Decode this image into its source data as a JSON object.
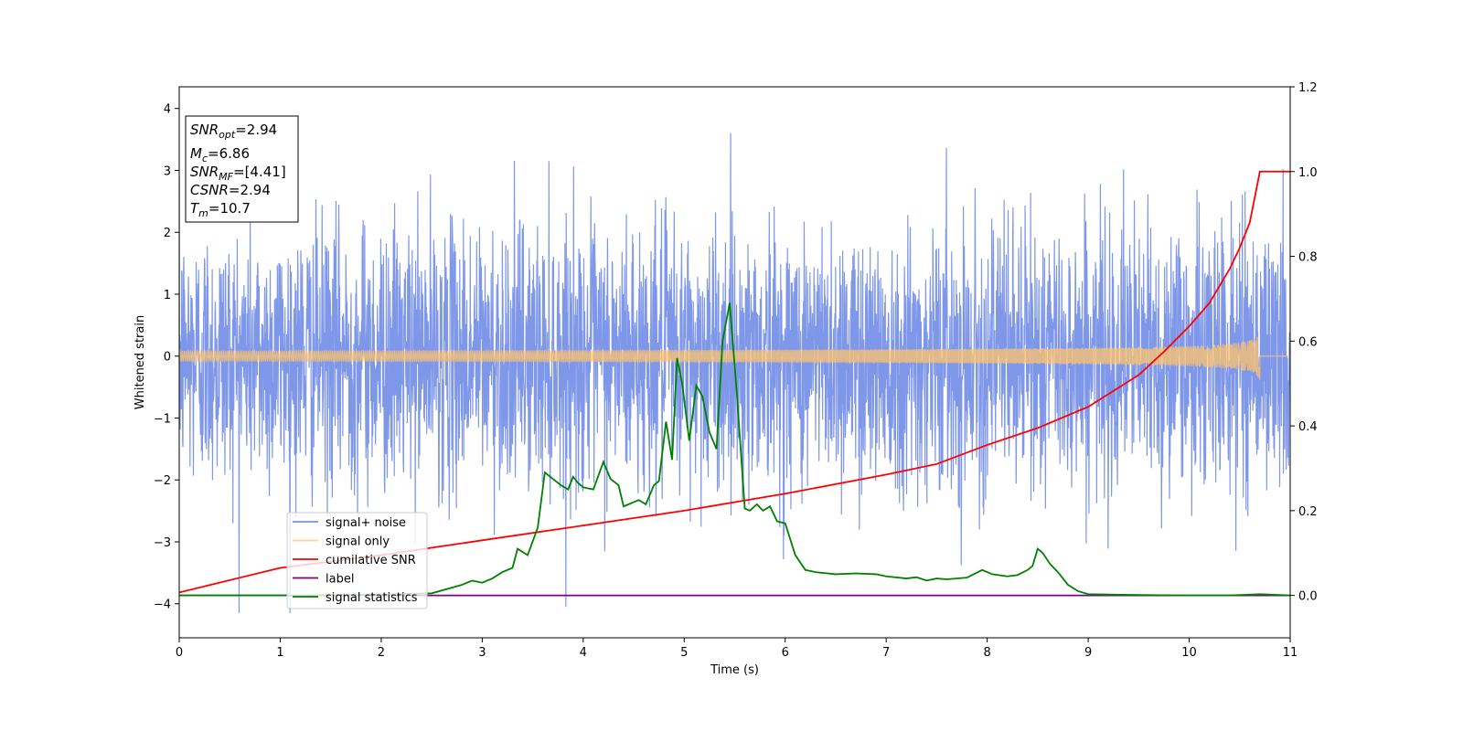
{
  "chart_data": {
    "type": "line",
    "xlabel": "Time (s)",
    "ylabel": "Whitened strain",
    "xlim": [
      0,
      11
    ],
    "ylim_left": [
      -4.55,
      4.35
    ],
    "ylim_right": [
      -0.1,
      1.2
    ],
    "x_ticks": [
      "0",
      "1",
      "2",
      "3",
      "4",
      "5",
      "6",
      "7",
      "8",
      "9",
      "10",
      "11"
    ],
    "y_left_ticks": [
      "4",
      "3",
      "2",
      "1",
      "0",
      "−1",
      "−2",
      "−3",
      "−4"
    ],
    "y_left_tick_values": [
      4,
      3,
      2,
      1,
      0,
      -1,
      -2,
      -3,
      -4
    ],
    "y_right_ticks": [
      "1.2",
      "1.0",
      "0.8",
      "0.6",
      "0.4",
      "0.2",
      "0.0"
    ],
    "y_right_tick_values": [
      1.2,
      1.0,
      0.8,
      0.6,
      0.4,
      0.2,
      0.0
    ],
    "grid": false,
    "legend_position": "lower-left",
    "info_box": {
      "snr_opt": {
        "sym": "SNR",
        "sub": "opt",
        "rest": "=2.94"
      },
      "mc": {
        "sym": "M",
        "sub": "c",
        "rest": "=6.86"
      },
      "snr_mf": {
        "sym": "SNR",
        "sub": "MF",
        "rest": "=[4.41]"
      },
      "csnr": {
        "sym": "CSNR",
        "sub": "",
        "rest": "=2.94"
      },
      "tm": {
        "sym": "T",
        "sub": "m",
        "rest": "=10.7"
      }
    },
    "series": [
      {
        "name": "signal+ noise",
        "axis": "left",
        "color": "#7891e8",
        "description": "noise-dominated, approximately Gaussian between -4 and 4"
      },
      {
        "name": "signal only",
        "axis": "left",
        "color": "#ffc36b",
        "chirp_end_x": 10.7,
        "chirp_end_amplitude": 0.45
      },
      {
        "name": "cumilative SNR",
        "axis": "right",
        "color": "#ff0000",
        "x": [
          0,
          1,
          2,
          3,
          4,
          5,
          6,
          7,
          7.5,
          8,
          8.5,
          9,
          9.5,
          9.75,
          10,
          10.2,
          10.4,
          10.5,
          10.6,
          10.7,
          11
        ],
        "y": [
          0.007,
          0.065,
          0.095,
          0.13,
          0.165,
          0.2,
          0.24,
          0.285,
          0.31,
          0.355,
          0.395,
          0.445,
          0.52,
          0.575,
          0.635,
          0.69,
          0.77,
          0.82,
          0.88,
          1.0,
          1.0
        ]
      },
      {
        "name": "label",
        "axis": "right",
        "color": "#800080",
        "x": [
          0,
          11
        ],
        "y": [
          0.0,
          0.0
        ]
      },
      {
        "name": "signal statistics",
        "axis": "right",
        "color": "#008000",
        "x": [
          0,
          1,
          2,
          2.5,
          2.8,
          2.9,
          3.0,
          3.1,
          3.2,
          3.3,
          3.35,
          3.45,
          3.55,
          3.62,
          3.7,
          3.78,
          3.85,
          3.9,
          3.95,
          4.0,
          4.1,
          4.2,
          4.27,
          4.35,
          4.4,
          4.45,
          4.5,
          4.55,
          4.62,
          4.7,
          4.75,
          4.82,
          4.88,
          4.93,
          4.98,
          5.05,
          5.12,
          5.18,
          5.25,
          5.32,
          5.38,
          5.45,
          5.52,
          5.6,
          5.65,
          5.72,
          5.78,
          5.85,
          5.92,
          6.0,
          6.1,
          6.2,
          6.3,
          6.5,
          6.7,
          6.9,
          7.0,
          7.2,
          7.3,
          7.4,
          7.5,
          7.6,
          7.8,
          7.95,
          8.05,
          8.2,
          8.3,
          8.4,
          8.45,
          8.5,
          8.55,
          8.62,
          8.7,
          8.8,
          8.9,
          9.0,
          9.2,
          9.5,
          10.0,
          10.4,
          10.7,
          11.0
        ],
        "y": [
          0.0,
          0.0,
          0.002,
          0.005,
          0.025,
          0.035,
          0.03,
          0.04,
          0.055,
          0.065,
          0.11,
          0.095,
          0.16,
          0.29,
          0.275,
          0.26,
          0.25,
          0.28,
          0.265,
          0.255,
          0.25,
          0.315,
          0.275,
          0.26,
          0.21,
          0.215,
          0.22,
          0.225,
          0.215,
          0.26,
          0.27,
          0.41,
          0.32,
          0.56,
          0.5,
          0.365,
          0.495,
          0.47,
          0.385,
          0.345,
          0.6,
          0.69,
          0.48,
          0.205,
          0.2,
          0.215,
          0.2,
          0.21,
          0.175,
          0.17,
          0.095,
          0.06,
          0.055,
          0.05,
          0.052,
          0.05,
          0.045,
          0.04,
          0.043,
          0.035,
          0.04,
          0.038,
          0.042,
          0.06,
          0.05,
          0.045,
          0.048,
          0.06,
          0.07,
          0.11,
          0.1,
          0.075,
          0.055,
          0.025,
          0.01,
          0.003,
          0.002,
          0.001,
          0.0,
          0.0,
          0.003,
          0.0
        ]
      }
    ]
  }
}
